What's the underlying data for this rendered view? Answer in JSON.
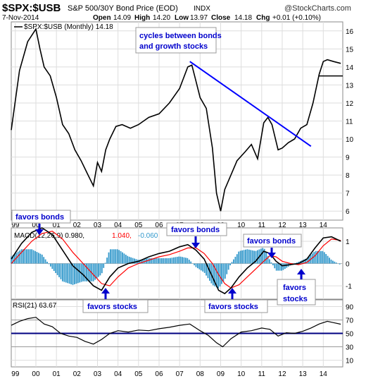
{
  "header": {
    "symbol": "$SPX:$USB",
    "description": "S&P 500/30Y Bond Price (EOD)",
    "exchange": "INDX",
    "watermark": "@StockCharts.com",
    "date": "7-Nov-2014",
    "quote": {
      "open_label": "Open",
      "open": "14.09",
      "high_label": "High",
      "high": "14.20",
      "low_label": "Low",
      "low": "13.97",
      "close_label": "Close",
      "close": "14.18",
      "chg_label": "Chg",
      "chg": "+0.01 (+0.10%)"
    }
  },
  "colors": {
    "price": "#000000",
    "macd": "#000000",
    "signal": "#ff0000",
    "histogram": "#3399cc",
    "annotation": "#0000cc",
    "trendline": "#0000ff",
    "grid": "#dddddd",
    "rsi_band": "#000080"
  },
  "chart_data": [
    {
      "type": "line",
      "legend": "$SPX:$USB (Monthly) 14.18",
      "y_ticks": [
        "16",
        "15",
        "14",
        "13",
        "12",
        "11",
        "10",
        "9",
        "8",
        "7",
        "6"
      ],
      "ylim": [
        5.5,
        16.5
      ],
      "x_ticks": [
        "99",
        "00",
        "01",
        "02",
        "03",
        "04",
        "05",
        "06",
        "07",
        "08",
        "09",
        "10",
        "11",
        "12",
        "13",
        "14"
      ],
      "x": [
        1998.8,
        1999.2,
        1999.6,
        2000.0,
        2000.2,
        2000.4,
        2000.7,
        2001.0,
        2001.3,
        2001.6,
        2001.9,
        2002.2,
        2002.5,
        2002.8,
        2003.0,
        2003.2,
        2003.4,
        2003.6,
        2003.9,
        2004.2,
        2004.6,
        2005.0,
        2005.5,
        2006.0,
        2006.5,
        2007.0,
        2007.4,
        2007.6,
        2007.8,
        2008.0,
        2008.3,
        2008.6,
        2008.8,
        2009.0,
        2009.2,
        2009.5,
        2009.8,
        2010.2,
        2010.5,
        2010.8,
        2011.1,
        2011.3,
        2011.5,
        2011.8,
        2012.0,
        2012.3,
        2012.6,
        2012.9,
        2013.2,
        2013.5,
        2013.8,
        2014.0,
        2014.2,
        2014.5,
        2014.85
      ],
      "values": [
        10.5,
        13.8,
        15.4,
        16.1,
        15.0,
        14.0,
        13.5,
        12.3,
        10.8,
        10.3,
        9.4,
        8.8,
        8.1,
        7.4,
        8.7,
        8.2,
        9.4,
        10.0,
        10.7,
        10.8,
        10.6,
        10.8,
        11.2,
        11.4,
        12.0,
        12.8,
        14.0,
        14.1,
        13.2,
        12.3,
        11.7,
        9.5,
        7.0,
        6.0,
        7.2,
        8.0,
        8.8,
        9.3,
        9.7,
        8.9,
        10.9,
        11.2,
        10.8,
        9.4,
        9.5,
        9.8,
        10.0,
        10.6,
        10.8,
        12.0,
        13.6,
        14.3,
        14.4,
        14.3,
        14.2
      ],
      "annotation": "cycles between bonds\nand growth stocks",
      "trendline": {
        "x": [
          2007.5,
          2013.4
        ],
        "y": [
          14.3,
          9.6
        ]
      },
      "horizontal_line": {
        "y": 13.5,
        "x_start": 2013.8
      }
    },
    {
      "type": "line",
      "legend_macd": "MACD(12,26,9) 0.980,",
      "legend_signal": "1.040,",
      "legend_hist": "-0.060",
      "y_ticks": [
        "1",
        "0",
        "-1"
      ],
      "ylim": [
        -1.6,
        1.6
      ],
      "x": [
        1998.8,
        1999.3,
        1999.8,
        2000.3,
        2000.8,
        2001.3,
        2001.8,
        2002.3,
        2002.8,
        2003.2,
        2003.6,
        2004.0,
        2004.5,
        2005.0,
        2005.5,
        2006.0,
        2006.5,
        2007.0,
        2007.4,
        2007.8,
        2008.2,
        2008.6,
        2008.9,
        2009.2,
        2009.5,
        2009.9,
        2010.3,
        2010.7,
        2011.1,
        2011.4,
        2011.7,
        2012.0,
        2012.4,
        2012.8,
        2013.2,
        2013.6,
        2014.0,
        2014.4,
        2014.85
      ],
      "macd": [
        0.2,
        0.9,
        1.4,
        1.6,
        1.3,
        0.6,
        -0.1,
        -0.5,
        -1.0,
        -1.2,
        -0.6,
        -0.2,
        0.0,
        0.1,
        0.3,
        0.45,
        0.55,
        0.75,
        0.85,
        0.6,
        0.2,
        -0.6,
        -1.2,
        -1.35,
        -1.1,
        -0.6,
        -0.2,
        0.1,
        0.55,
        0.45,
        0.1,
        -0.1,
        -0.05,
        0.0,
        0.2,
        0.7,
        1.15,
        1.2,
        1.0
      ],
      "signal": [
        0.0,
        0.5,
        1.0,
        1.35,
        1.45,
        1.1,
        0.5,
        0.0,
        -0.5,
        -0.9,
        -1.0,
        -0.6,
        -0.2,
        0.0,
        0.15,
        0.3,
        0.4,
        0.55,
        0.7,
        0.7,
        0.45,
        0.0,
        -0.5,
        -0.9,
        -1.1,
        -0.95,
        -0.6,
        -0.25,
        0.1,
        0.35,
        0.3,
        0.1,
        0.0,
        -0.05,
        0.05,
        0.35,
        0.8,
        1.1,
        1.04
      ],
      "labels": [
        "favors bonds",
        "favors bonds",
        "favors bonds",
        "favors stocks",
        "favors stocks",
        "favors stocks"
      ]
    },
    {
      "type": "line",
      "legend": "RSI(21) 63.67",
      "y_ticks": [
        "90",
        "70",
        "50",
        "30",
        "10"
      ],
      "ylim": [
        0,
        100
      ],
      "x_ticks": [
        "99",
        "00",
        "01",
        "02",
        "03",
        "04",
        "05",
        "06",
        "07",
        "08",
        "09",
        "10",
        "11",
        "12",
        "13",
        "14"
      ],
      "x": [
        1998.8,
        1999.2,
        1999.6,
        2000.0,
        2000.4,
        2000.8,
        2001.2,
        2001.6,
        2002.0,
        2002.4,
        2002.8,
        2003.2,
        2003.6,
        2004.0,
        2004.5,
        2005.0,
        2005.5,
        2006.0,
        2006.5,
        2007.0,
        2007.5,
        2008.0,
        2008.4,
        2008.8,
        2009.1,
        2009.5,
        2010.0,
        2010.5,
        2011.0,
        2011.4,
        2011.8,
        2012.2,
        2012.6,
        2013.0,
        2013.4,
        2013.8,
        2014.2,
        2014.5,
        2014.85
      ],
      "values": [
        62,
        68,
        72,
        74,
        64,
        60,
        50,
        46,
        44,
        38,
        34,
        41,
        50,
        54,
        52,
        55,
        54,
        57,
        59,
        62,
        64,
        54,
        47,
        36,
        30,
        42,
        52,
        54,
        58,
        56,
        46,
        51,
        50,
        53,
        58,
        64,
        68,
        66,
        63.67
      ],
      "band_y": 50
    }
  ],
  "annotations": {
    "title_box": "cycles between bonds\nand growth stocks",
    "bonds_1": "favors bonds",
    "bonds_2": "favors bonds",
    "bonds_3": "favors bonds",
    "stocks_1": "favors stocks",
    "stocks_2": "favors stocks",
    "stocks_3_line1": "favors",
    "stocks_3_line2": "stocks"
  }
}
